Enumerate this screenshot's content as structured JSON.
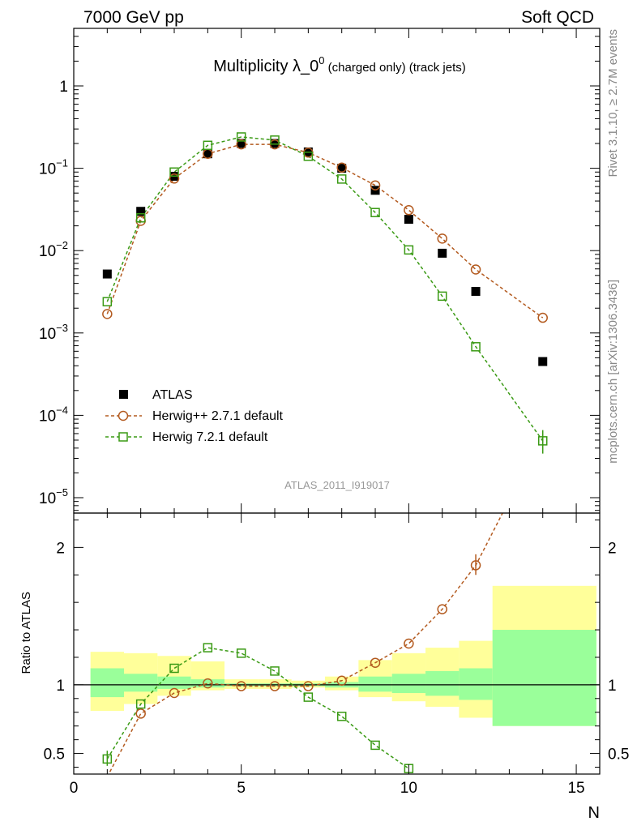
{
  "header": {
    "left": "7000 GeV pp",
    "right": "Soft QCD"
  },
  "title": {
    "main": "Multiplicity λ_0",
    "sup": "0",
    "tail": " (charged only) (track jets)"
  },
  "side_labels": {
    "rivet": "Rivet 3.1.10, ≥ 2.7M events",
    "mcplots": "mcplots.cern.ch [arXiv:1306.3436]"
  },
  "watermark": "ATLAS_2011_I919017",
  "colors": {
    "atlas": "#000000",
    "herwigpp": "#b35a1f",
    "herwig7": "#3a9a14",
    "band_outer": "#ffff9a",
    "band_inner": "#9aff9a"
  },
  "chart_data": [
    {
      "type": "scatter",
      "panel": "main",
      "log_y": true,
      "xlim": [
        0,
        15.7
      ],
      "ylim": [
        6.5e-06,
        5
      ],
      "y_tick_labels": [
        {
          "value": 1,
          "base": "1",
          "exp": ""
        },
        {
          "value": 0.1,
          "base": "10",
          "exp": "−1"
        },
        {
          "value": 0.01,
          "base": "10",
          "exp": "−2"
        },
        {
          "value": 0.001,
          "base": "10",
          "exp": "−3"
        },
        {
          "value": 0.0001,
          "base": "10",
          "exp": "−4"
        },
        {
          "value": 1e-05,
          "base": "10",
          "exp": "−5"
        }
      ],
      "legend_position": "bottom-left",
      "series": [
        {
          "name": "ATLAS",
          "marker": "filled-square",
          "x": [
            1,
            2,
            3,
            4,
            5,
            6,
            7,
            8,
            9,
            10,
            11,
            12,
            14
          ],
          "y": [
            0.0052,
            0.03,
            0.08,
            0.15,
            0.2,
            0.2,
            0.158,
            0.1,
            0.054,
            0.024,
            0.0093,
            0.0032,
            0.00045
          ]
        },
        {
          "name": "Herwig++ 2.7.1 default",
          "marker": "open-circle",
          "x": [
            1,
            2,
            3,
            4,
            5,
            6,
            7,
            8,
            9,
            10,
            11,
            12,
            14
          ],
          "y": [
            0.0017,
            0.023,
            0.075,
            0.15,
            0.195,
            0.195,
            0.155,
            0.102,
            0.062,
            0.031,
            0.014,
            0.0059,
            0.00153
          ]
        },
        {
          "name": "Herwig 7.2.1 default",
          "marker": "open-square",
          "x": [
            1,
            2,
            3,
            4,
            5,
            6,
            7,
            8,
            9,
            10,
            11,
            12,
            14
          ],
          "y": [
            0.0024,
            0.025,
            0.09,
            0.19,
            0.24,
            0.22,
            0.14,
            0.074,
            0.029,
            0.0102,
            0.0028,
            0.00068,
            4.9e-05
          ]
        }
      ]
    },
    {
      "type": "line",
      "panel": "ratio",
      "ylabel": "Ratio to ATLAS",
      "xlabel": "N",
      "xlim": [
        0,
        15.7
      ],
      "ylim": [
        0.35,
        2.25
      ],
      "x_tick_labels": [
        "0",
        "5",
        "10",
        "15"
      ],
      "y_tick_labels": [
        "0.5",
        "1",
        "2"
      ],
      "bands": {
        "edges": [
          0.5,
          1.5,
          2.5,
          3.5,
          4.5,
          5.5,
          6.5,
          7.5,
          8.5,
          9.5,
          10.5,
          11.5,
          12.5,
          15.6
        ],
        "outer_low": [
          0.81,
          0.86,
          0.92,
          0.96,
          0.97,
          0.97,
          0.98,
          0.96,
          0.91,
          0.88,
          0.84,
          0.76,
          0.7
        ],
        "outer_high": [
          1.24,
          1.23,
          1.21,
          1.17,
          1.04,
          1.04,
          1.03,
          1.06,
          1.18,
          1.23,
          1.27,
          1.32,
          1.72
        ],
        "inner_low": [
          0.91,
          0.95,
          0.97,
          0.98,
          0.99,
          0.99,
          0.99,
          0.98,
          0.95,
          0.94,
          0.92,
          0.89,
          0.7
        ],
        "inner_high": [
          1.12,
          1.08,
          1.06,
          1.04,
          1.01,
          1.01,
          1.01,
          1.02,
          1.06,
          1.08,
          1.1,
          1.12,
          1.4
        ]
      },
      "series": [
        {
          "name": "Herwig++ 2.7.1 default",
          "marker": "open-circle",
          "x": [
            1,
            2,
            3,
            4,
            5,
            6,
            7,
            8,
            9,
            10,
            11,
            12
          ],
          "y": [
            0.33,
            0.79,
            0.94,
            1.01,
            0.99,
            0.99,
            0.99,
            1.03,
            1.16,
            1.3,
            1.55,
            1.87
          ],
          "continues_to": {
            "x": 12.8,
            "y": 2.25
          }
        },
        {
          "name": "Herwig 7.2.1 default",
          "marker": "open-square",
          "x": [
            1,
            2,
            3,
            4,
            5,
            6,
            7,
            8,
            9,
            10
          ],
          "y": [
            0.46,
            0.86,
            1.12,
            1.27,
            1.23,
            1.1,
            0.91,
            0.77,
            0.56,
            0.39
          ]
        }
      ]
    }
  ]
}
